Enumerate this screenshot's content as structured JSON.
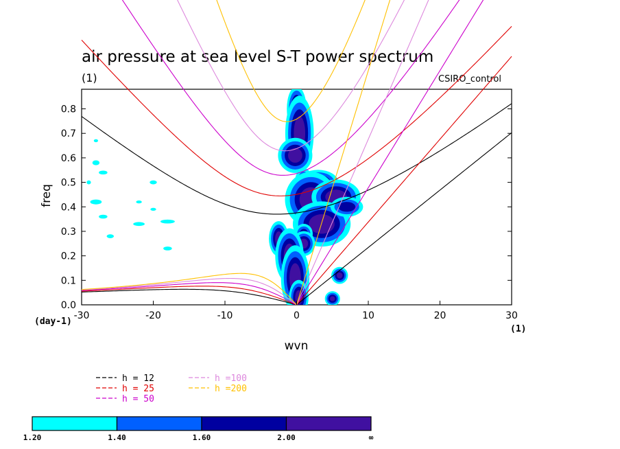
{
  "chart_data": {
    "type": "heatmap",
    "title": "air pressure at sea level S-T power spectrum",
    "title_unit": "(1)",
    "dataset": "CSIRO_control",
    "xlabel": "wvn",
    "ylabel": "freq",
    "x_unit": "(1)",
    "y_unit": "(day-1)",
    "xlim": [
      -30,
      30
    ],
    "ylim": [
      0,
      0.88
    ],
    "xticks": [
      -30,
      -20,
      -10,
      0,
      10,
      20,
      30
    ],
    "xtick_labels": [
      "-30",
      "-20",
      "-10",
      "0",
      "10",
      "20",
      "30"
    ],
    "yticks": [
      0,
      0.1,
      0.2,
      0.3,
      0.4,
      0.5,
      0.6,
      0.7,
      0.8
    ],
    "ytick_labels": [
      "0.0",
      "0.1",
      "0.2",
      "0.3",
      "0.4",
      "0.5",
      "0.6",
      "0.7",
      "0.8"
    ],
    "grid": false,
    "contour_levels": [
      "1.20",
      "1.40",
      "1.60",
      "2.00",
      "∞"
    ],
    "level_colors": [
      "#00ffff",
      "#0060ff",
      "#0000a0",
      "#4010a0"
    ],
    "dispersion_curves": [
      {
        "name": "h = 12",
        "color": "#000000",
        "h": 12
      },
      {
        "name": "h = 25",
        "color": "#e00000",
        "h": 25
      },
      {
        "name": "h = 50",
        "color": "#cc00cc",
        "h": 50
      },
      {
        "name": "h =100",
        "color": "#dd88dd",
        "h": 100
      },
      {
        "name": "h =200",
        "color": "#ffc000",
        "h": 200
      }
    ],
    "patches": [
      {
        "x": 0.0,
        "y": 0.8,
        "rx": 0.5,
        "ry": 0.04,
        "level": 3
      },
      {
        "x": 0.4,
        "y": 0.7,
        "rx": 0.8,
        "ry": 0.07,
        "level": 3
      },
      {
        "x": -0.2,
        "y": 0.61,
        "rx": 1.0,
        "ry": 0.03,
        "level": 3
      },
      {
        "x": 1.0,
        "y": 0.5,
        "rx": 0.6,
        "ry": 0.03,
        "level": 2
      },
      {
        "x": 3.0,
        "y": 0.5,
        "rx": 1.2,
        "ry": 0.02,
        "level": 3
      },
      {
        "x": 2.0,
        "y": 0.43,
        "rx": 1.6,
        "ry": 0.05,
        "level": 3
      },
      {
        "x": 5.5,
        "y": 0.44,
        "rx": 1.5,
        "ry": 0.03,
        "level": 3
      },
      {
        "x": 3.5,
        "y": 0.33,
        "rx": 1.8,
        "ry": 0.04,
        "level": 3
      },
      {
        "x": 7.0,
        "y": 0.4,
        "rx": 1.2,
        "ry": 0.02,
        "level": 2
      },
      {
        "x": 1.0,
        "y": 0.29,
        "rx": 0.6,
        "ry": 0.02,
        "level": 2
      },
      {
        "x": 1.0,
        "y": 0.25,
        "rx": 0.6,
        "ry": 0.02,
        "level": 3
      },
      {
        "x": -2.5,
        "y": 0.27,
        "rx": 0.5,
        "ry": 0.03,
        "level": 3
      },
      {
        "x": -1.0,
        "y": 0.2,
        "rx": 0.8,
        "ry": 0.05,
        "level": 3
      },
      {
        "x": -0.2,
        "y": 0.11,
        "rx": 0.8,
        "ry": 0.06,
        "level": 3
      },
      {
        "x": 0.3,
        "y": 0.03,
        "rx": 0.5,
        "ry": 0.03,
        "level": 3
      },
      {
        "x": 6.0,
        "y": 0.12,
        "rx": 0.4,
        "ry": 0.012,
        "level": 3
      },
      {
        "x": 5.0,
        "y": 0.025,
        "rx": 0.35,
        "ry": 0.01,
        "level": 3
      },
      {
        "x": -18.0,
        "y": 0.34,
        "rx": 1.0,
        "ry": 0.008,
        "level": 0
      },
      {
        "x": -22.0,
        "y": 0.33,
        "rx": 0.8,
        "ry": 0.008,
        "level": 0
      },
      {
        "x": -28.0,
        "y": 0.42,
        "rx": 0.8,
        "ry": 0.01,
        "level": 0
      },
      {
        "x": -27.0,
        "y": 0.36,
        "rx": 0.6,
        "ry": 0.008,
        "level": 0
      },
      {
        "x": -28.0,
        "y": 0.58,
        "rx": 0.5,
        "ry": 0.01,
        "level": 0
      },
      {
        "x": -27.0,
        "y": 0.54,
        "rx": 0.6,
        "ry": 0.008,
        "level": 0
      },
      {
        "x": -18.0,
        "y": 0.23,
        "rx": 0.6,
        "ry": 0.008,
        "level": 0
      },
      {
        "x": -26.0,
        "y": 0.28,
        "rx": 0.5,
        "ry": 0.008,
        "level": 0
      },
      {
        "x": -20.0,
        "y": 0.5,
        "rx": 0.5,
        "ry": 0.008,
        "level": 0
      },
      {
        "x": -20.0,
        "y": 0.39,
        "rx": 0.4,
        "ry": 0.006,
        "level": 0
      },
      {
        "x": -22.0,
        "y": 0.42,
        "rx": 0.4,
        "ry": 0.006,
        "level": 0
      },
      {
        "x": -28.0,
        "y": 0.67,
        "rx": 0.3,
        "ry": 0.006,
        "level": 0
      },
      {
        "x": -29.0,
        "y": 0.5,
        "rx": 0.3,
        "ry": 0.008,
        "level": 0
      }
    ]
  }
}
